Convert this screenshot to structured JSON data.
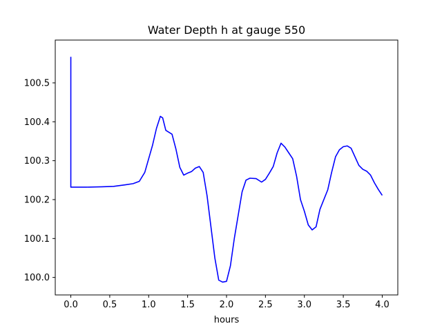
{
  "chart_data": {
    "type": "line",
    "title": "Water Depth h at gauge 550",
    "xlabel": "hours",
    "ylabel": "",
    "xlim": [
      -0.2,
      4.2
    ],
    "ylim": [
      99.955,
      100.61
    ],
    "xticks": [
      0.0,
      0.5,
      1.0,
      1.5,
      2.0,
      2.5,
      3.0,
      3.5,
      4.0
    ],
    "xtick_labels": [
      "0.0",
      "0.5",
      "1.0",
      "1.5",
      "2.0",
      "2.5",
      "3.0",
      "3.5",
      "4.0"
    ],
    "yticks": [
      100.0,
      100.1,
      100.2,
      100.3,
      100.4,
      100.5
    ],
    "ytick_labels": [
      "100.0",
      "100.1",
      "100.2",
      "100.3",
      "100.4",
      "100.5"
    ],
    "grid": false,
    "series": [
      {
        "color": "#0000ff",
        "points": [
          [
            0.0,
            100.567
          ],
          [
            0.0,
            100.232
          ],
          [
            0.2,
            100.232
          ],
          [
            0.4,
            100.233
          ],
          [
            0.55,
            100.234
          ],
          [
            0.7,
            100.238
          ],
          [
            0.8,
            100.241
          ],
          [
            0.88,
            100.247
          ],
          [
            0.95,
            100.27
          ],
          [
            1.0,
            100.305
          ],
          [
            1.05,
            100.34
          ],
          [
            1.1,
            100.383
          ],
          [
            1.15,
            100.414
          ],
          [
            1.18,
            100.41
          ],
          [
            1.22,
            100.378
          ],
          [
            1.3,
            100.368
          ],
          [
            1.35,
            100.33
          ],
          [
            1.4,
            100.283
          ],
          [
            1.45,
            100.263
          ],
          [
            1.5,
            100.268
          ],
          [
            1.55,
            100.272
          ],
          [
            1.6,
            100.281
          ],
          [
            1.65,
            100.285
          ],
          [
            1.7,
            100.27
          ],
          [
            1.75,
            100.21
          ],
          [
            1.8,
            100.13
          ],
          [
            1.85,
            100.05
          ],
          [
            1.9,
            99.993
          ],
          [
            1.95,
            99.988
          ],
          [
            2.0,
            99.99
          ],
          [
            2.05,
            100.03
          ],
          [
            2.1,
            100.1
          ],
          [
            2.15,
            100.16
          ],
          [
            2.2,
            100.22
          ],
          [
            2.25,
            100.25
          ],
          [
            2.3,
            100.255
          ],
          [
            2.38,
            100.254
          ],
          [
            2.45,
            100.245
          ],
          [
            2.5,
            100.252
          ],
          [
            2.55,
            100.268
          ],
          [
            2.6,
            100.285
          ],
          [
            2.65,
            100.32
          ],
          [
            2.7,
            100.345
          ],
          [
            2.75,
            100.335
          ],
          [
            2.8,
            100.32
          ],
          [
            2.85,
            100.305
          ],
          [
            2.9,
            100.26
          ],
          [
            2.95,
            100.2
          ],
          [
            3.0,
            100.17
          ],
          [
            3.05,
            100.135
          ],
          [
            3.1,
            100.122
          ],
          [
            3.15,
            100.13
          ],
          [
            3.2,
            100.175
          ],
          [
            3.25,
            100.2
          ],
          [
            3.3,
            100.225
          ],
          [
            3.35,
            100.27
          ],
          [
            3.4,
            100.31
          ],
          [
            3.45,
            100.328
          ],
          [
            3.5,
            100.336
          ],
          [
            3.55,
            100.338
          ],
          [
            3.6,
            100.332
          ],
          [
            3.65,
            100.31
          ],
          [
            3.7,
            100.288
          ],
          [
            3.75,
            100.278
          ],
          [
            3.8,
            100.273
          ],
          [
            3.85,
            100.263
          ],
          [
            3.9,
            100.243
          ],
          [
            3.95,
            100.226
          ],
          [
            4.0,
            100.211
          ]
        ]
      }
    ]
  }
}
